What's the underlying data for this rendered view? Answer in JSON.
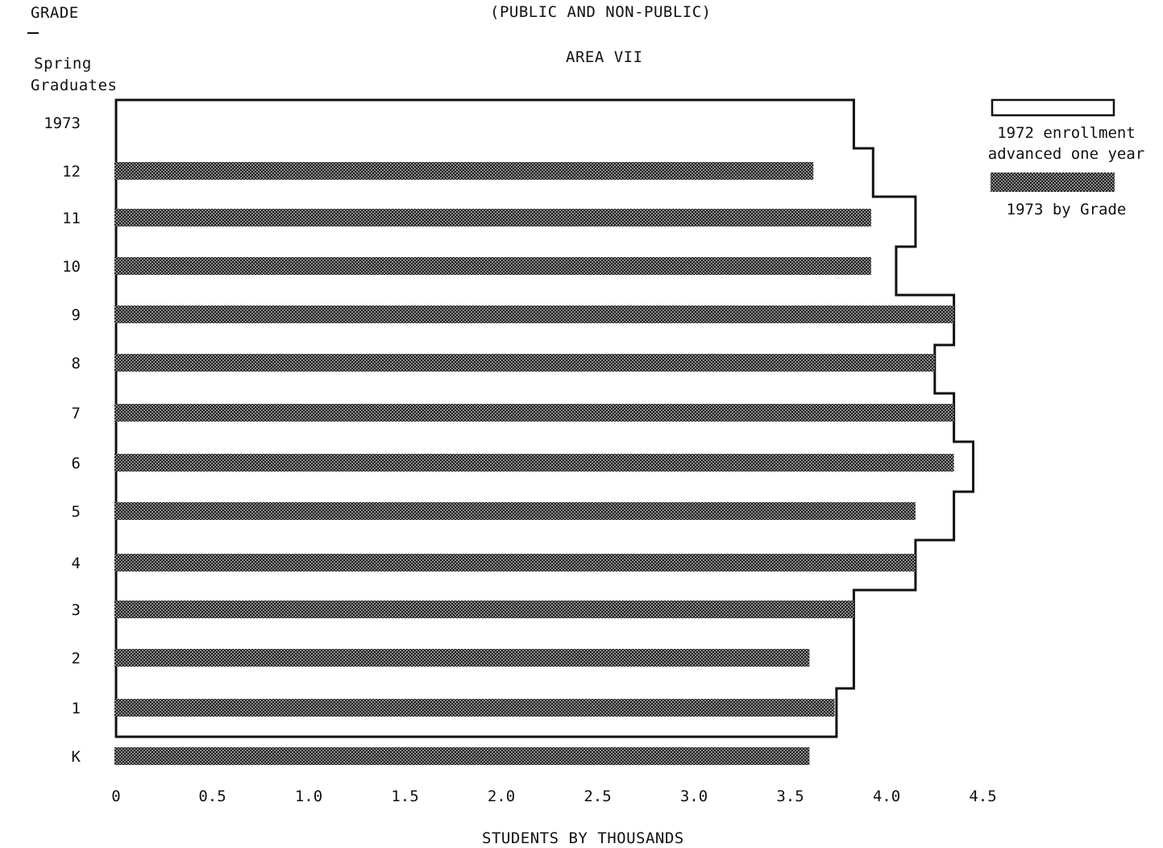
{
  "chart_data": {
    "type": "bar",
    "title": "AREA VII",
    "subtitle": "(PUBLIC AND NON-PUBLIC)",
    "ylabel": "GRADE",
    "xlabel": "STUDENTS BY THOUSANDS",
    "row_header": "Spring Graduates",
    "xlim": [
      0,
      4.5
    ],
    "xticks": [
      "0",
      "0.5",
      "1.0",
      "1.5",
      "2.0",
      "2.5",
      "3.0",
      "3.5",
      "4.0",
      "4.5"
    ],
    "categories": [
      "1973",
      "12",
      "11",
      "10",
      "9",
      "8",
      "7",
      "6",
      "5",
      "4",
      "3",
      "2",
      "1",
      "K"
    ],
    "series": [
      {
        "name": "1972 enrollment advanced one year",
        "style": "outline",
        "values": [
          3.83,
          3.93,
          4.15,
          4.05,
          4.35,
          4.25,
          4.35,
          4.45,
          4.35,
          4.15,
          3.83,
          3.83,
          3.74,
          null
        ]
      },
      {
        "name": "1973 by Grade",
        "style": "hatched",
        "values": [
          null,
          3.62,
          3.92,
          3.92,
          4.35,
          4.25,
          4.35,
          4.35,
          4.15,
          4.15,
          3.83,
          3.6,
          3.73,
          3.6
        ]
      }
    ],
    "colors": {
      "fill": "#3a3a3a",
      "outline": "#111111"
    },
    "legend": "top-right",
    "grid": false
  }
}
